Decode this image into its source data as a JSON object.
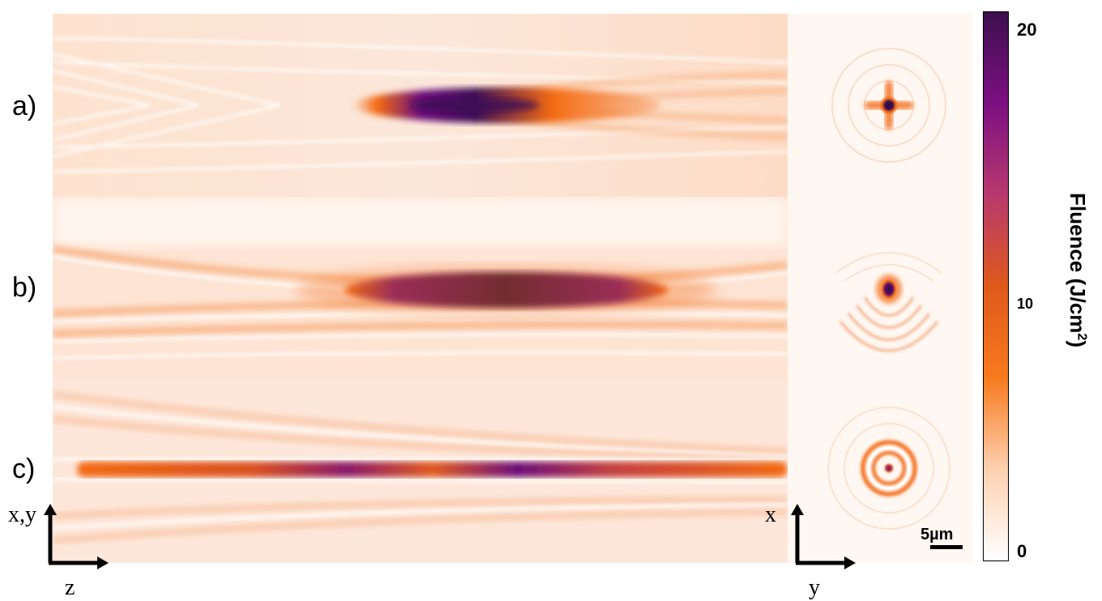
{
  "panels": [
    {
      "label": "a)"
    },
    {
      "label": "b)"
    },
    {
      "label": "c)"
    }
  ],
  "axes": {
    "left_vertical": "x,y",
    "left_horizontal": "z",
    "right_vertical": "x",
    "right_horizontal": "y"
  },
  "scale_bar": {
    "label": "5µm"
  },
  "colorbar": {
    "title": "Fluence (J/cm",
    "title_superscript": "2",
    "title_close": ")",
    "ticks": [
      "20",
      "10",
      "0"
    ],
    "colors": [
      "#ffffff",
      "#fdd0b0",
      "#f77a1e",
      "#e0591b",
      "#b8396e",
      "#7d0f82",
      "#3d0f4e"
    ]
  },
  "colors": {
    "orange": "#f36b12",
    "purple_dark": "#3d0f55",
    "background": "#fff5ee"
  }
}
